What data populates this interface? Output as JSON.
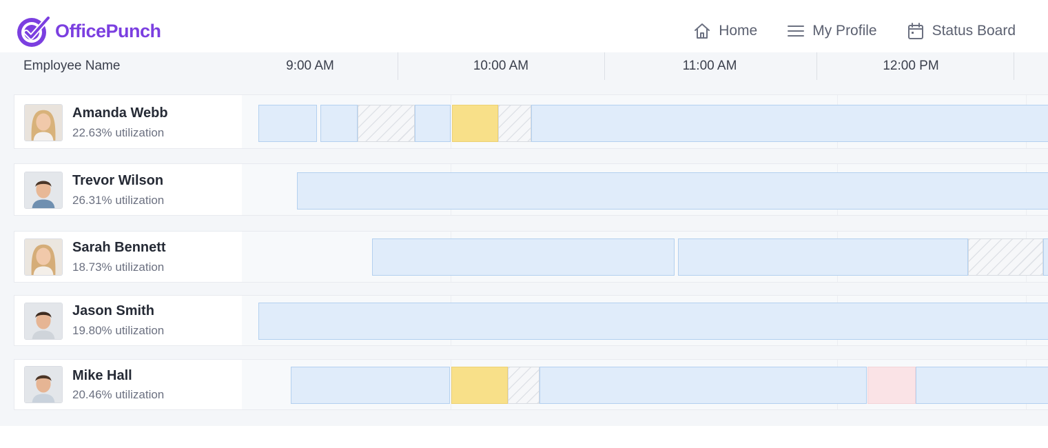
{
  "app": {
    "name": "OfficePunch",
    "brand_color": "#7b3fe0"
  },
  "nav": {
    "items": [
      {
        "label": "Home",
        "icon": "home-icon"
      },
      {
        "label": "My Profile",
        "icon": "menu-icon"
      },
      {
        "label": "Status Board",
        "icon": "calendar-icon"
      }
    ]
  },
  "board": {
    "employee_column_label": "Employee Name",
    "time_labels": [
      "9:00 AM",
      "10:00 AM",
      "11:00 AM",
      "12:00 PM"
    ],
    "legend_colors": {
      "work": "#e0ecfa",
      "break": "#f8e089",
      "idle": "hatched",
      "alert": "#fae3e6"
    },
    "employees": [
      {
        "name": "Amanda Webb",
        "utilization": "22.63% utilization",
        "avatar": "woman-avatar"
      },
      {
        "name": "Trevor Wilson",
        "utilization": "26.31% utilization",
        "avatar": "man-avatar"
      },
      {
        "name": "Sarah Bennett",
        "utilization": "18.73% utilization",
        "avatar": "woman-avatar"
      },
      {
        "name": "Jason Smith",
        "utilization": "19.80% utilization",
        "avatar": "man-avatar"
      },
      {
        "name": "Mike Hall",
        "utilization": "20.46% utilization",
        "avatar": "man-avatar"
      }
    ]
  }
}
